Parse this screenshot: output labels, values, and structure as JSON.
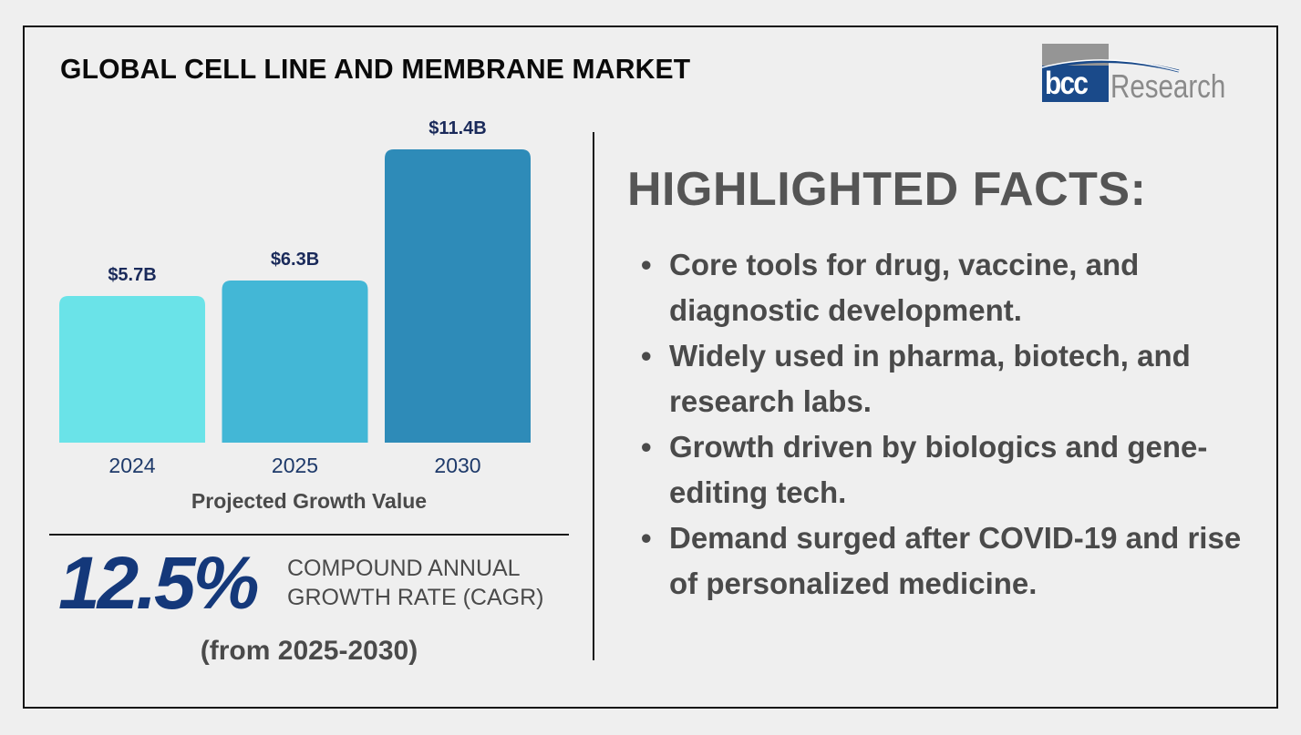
{
  "header": {
    "title": "GLOBAL CELL LINE AND MEMBRANE MARKET",
    "logo": {
      "mark": "bcc",
      "wordmark": "Research"
    }
  },
  "chart_data": {
    "type": "bar",
    "title": "Projected Growth Value",
    "categories": [
      "2024",
      "2025",
      "2030"
    ],
    "values": [
      5.7,
      6.3,
      11.4
    ],
    "value_labels": [
      "$5.7B",
      "$6.3B",
      "$11.4B"
    ],
    "unit": "USD billions",
    "ylim": [
      0,
      11.4
    ],
    "grid": false,
    "colors": [
      "#6ae3e8",
      "#43b7d6",
      "#2e8bb8"
    ],
    "label_color": "#1a2a5a"
  },
  "cagr": {
    "value": "12.5%",
    "label_line1": "COMPOUND ANNUAL",
    "label_line2": "GROWTH RATE (CAGR)",
    "period": "(from 2025-2030)"
  },
  "facts": {
    "heading": "HIGHLIGHTED FACTS:",
    "bullet_icon": "bullet-dot",
    "items": [
      "Core tools for drug, vaccine, and diagnostic development.",
      "Widely used in pharma, biotech, and research labs.",
      "Growth driven by biologics and gene-editing tech.",
      "Demand surged after COVID-19 and rise of personalized medicine."
    ]
  }
}
